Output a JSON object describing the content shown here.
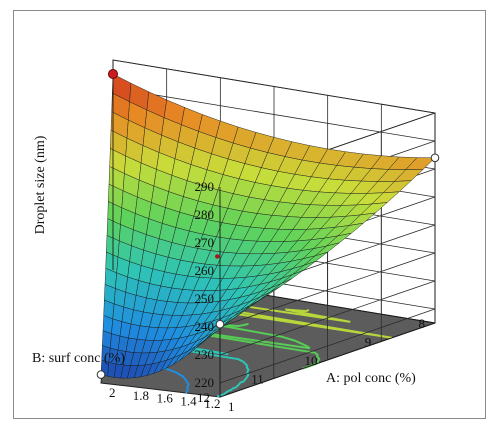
{
  "chart_data": {
    "type": "surface3d",
    "zlabel": "Droplet size (nm)",
    "xlabel": "A: pol conc (%)",
    "ylabel": "B: surf conc (%)",
    "z_ticks": [
      "290",
      "280",
      "270",
      "260",
      "250",
      "240",
      "230",
      "220"
    ],
    "x_ticks": [
      "1",
      "1.2",
      "1.4",
      "1.6",
      "1.8",
      "2"
    ],
    "y_ticks": [
      "8",
      "9",
      "10",
      "11",
      "12"
    ],
    "zlim": [
      215,
      290
    ],
    "xlim": [
      1,
      2
    ],
    "ylim": [
      8,
      12
    ],
    "corners": [
      {
        "x": 2,
        "y": 8,
        "z": 285
      },
      {
        "x": 1,
        "y": 8,
        "z": 274
      },
      {
        "x": 1,
        "y": 12,
        "z": 241
      },
      {
        "x": 2,
        "y": 12,
        "z": 218
      }
    ],
    "center_point": {
      "x": 1.5,
      "y": 10,
      "z": 246
    },
    "colormap": [
      "#1e3ea8",
      "#1f8ee0",
      "#2ec4b6",
      "#5fd35a",
      "#c9dd3a",
      "#e88a24",
      "#c81e1e"
    ]
  }
}
